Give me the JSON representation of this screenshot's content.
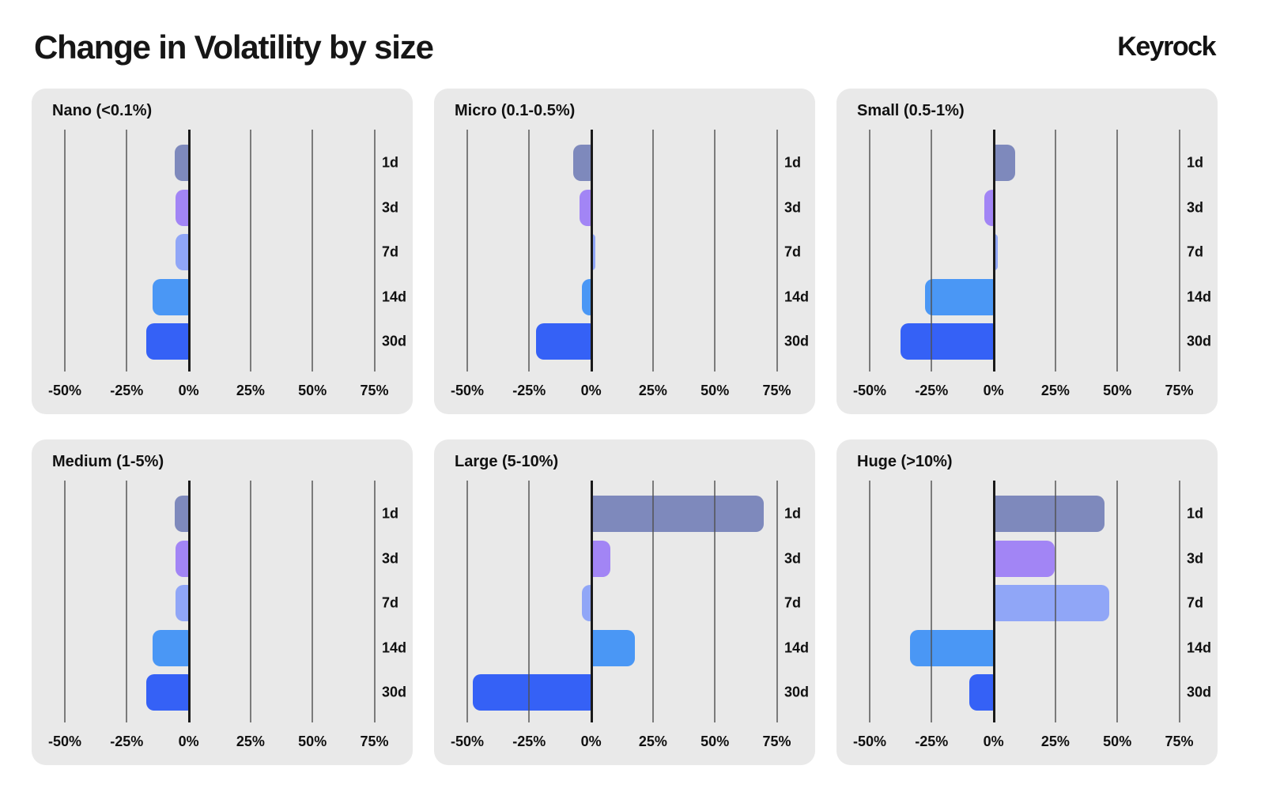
{
  "header": {
    "title": "Change in Volatility by size",
    "logo": "Keyrock"
  },
  "palette": {
    "page_bg": "#ffffff",
    "panel_bg": "#e9e9e9",
    "grid_color": "rgba(80,80,80,0.72)",
    "axis_color": "#1a1a1a",
    "text_color": "#101010",
    "bar_colors": {
      "1d": "#7E89BC",
      "3d": "#A285F5",
      "7d": "#90A6F7",
      "14d": "#4A97F5",
      "30d": "#3561F6"
    }
  },
  "axis": {
    "xtick_values": [
      -50,
      -25,
      0,
      25,
      50,
      75
    ],
    "xtick_labels": [
      "-50%",
      "-25%",
      "0%",
      "25%",
      "50%",
      "75%"
    ],
    "xlim": [
      -50,
      75
    ],
    "unit": "%"
  },
  "chart_data": [
    {
      "type": "bar",
      "orientation": "horizontal",
      "title": "Nano (<0.1%)",
      "categories": [
        "1d",
        "3d",
        "7d",
        "14d",
        "30d"
      ],
      "values": [
        -6,
        -5.5,
        -5.5,
        -15,
        -17.5
      ],
      "xlabel": "",
      "ylabel": "",
      "xlim": [
        -50,
        75
      ],
      "grid": true
    },
    {
      "type": "bar",
      "orientation": "horizontal",
      "title": "Micro (0.1-0.5%)",
      "categories": [
        "1d",
        "3d",
        "7d",
        "14d",
        "30d"
      ],
      "values": [
        -7.5,
        -5,
        2,
        -4,
        -22.5
      ],
      "xlabel": "",
      "ylabel": "",
      "xlim": [
        -50,
        75
      ],
      "grid": true
    },
    {
      "type": "bar",
      "orientation": "horizontal",
      "title": "Small (0.5-1%)",
      "categories": [
        "1d",
        "3d",
        "7d",
        "14d",
        "30d"
      ],
      "values": [
        9,
        -4,
        2,
        -28,
        -38
      ],
      "xlabel": "",
      "ylabel": "",
      "xlim": [
        -50,
        75
      ],
      "grid": true
    },
    {
      "type": "bar",
      "orientation": "horizontal",
      "title": "Medium (1-5%)",
      "categories": [
        "1d",
        "3d",
        "7d",
        "14d",
        "30d"
      ],
      "values": [
        -6,
        -5.5,
        -5.5,
        -15,
        -17.5
      ],
      "xlabel": "",
      "ylabel": "",
      "xlim": [
        -50,
        75
      ],
      "grid": true
    },
    {
      "type": "bar",
      "orientation": "horizontal",
      "title": "Large (5-10%)",
      "categories": [
        "1d",
        "3d",
        "7d",
        "14d",
        "30d"
      ],
      "values": [
        70,
        8,
        -4,
        18,
        -48
      ],
      "xlabel": "",
      "ylabel": "",
      "xlim": [
        -50,
        75
      ],
      "grid": true
    },
    {
      "type": "bar",
      "orientation": "horizontal",
      "title": "Huge (>10%)",
      "categories": [
        "1d",
        "3d",
        "7d",
        "14d",
        "30d"
      ],
      "values": [
        45,
        25,
        47,
        -34,
        -10
      ],
      "xlabel": "",
      "ylabel": "",
      "xlim": [
        -50,
        75
      ],
      "grid": true
    }
  ]
}
